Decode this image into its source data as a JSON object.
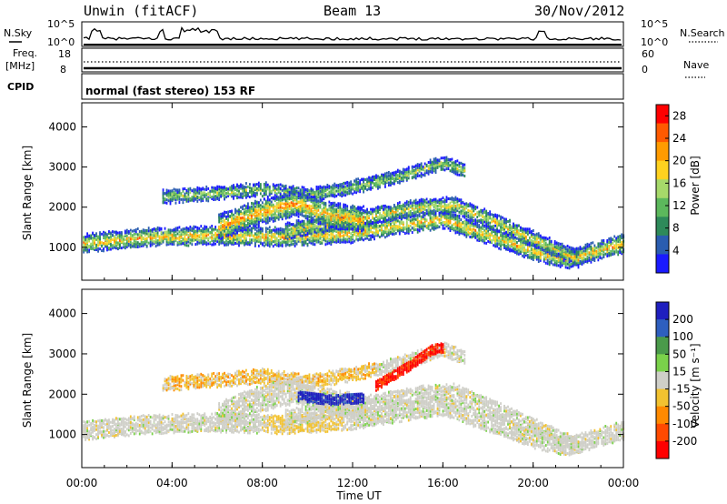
{
  "header": {
    "station": "Unwin (fitACF)",
    "beam": "Beam 13",
    "date": "30/Nov/2012"
  },
  "params": {
    "nsky_label": "N.Sky",
    "nsky_ticks": [
      "10^5",
      "10^0"
    ],
    "nsearch_label": "N.Search",
    "nsearch_ticks": [
      "10^5",
      "10^0"
    ],
    "freq_label": "Freq.",
    "freq_unit": "[MHz]",
    "freq_ticks": [
      "18",
      "8"
    ],
    "nave_label": "Nave",
    "nave_ticks": [
      "60",
      "0"
    ],
    "cpid_label": "CPID",
    "cpid_text": "normal (fast stereo) 153 RF"
  },
  "axes": {
    "x_ticks": [
      "00:00",
      "04:00",
      "08:00",
      "12:00",
      "16:00",
      "20:00",
      "00:00"
    ],
    "x_label": "Time UT",
    "y_ticks": [
      "1000",
      "2000",
      "3000",
      "4000"
    ],
    "y_label": "Slant Range [km]"
  },
  "chart_data": [
    {
      "type": "heatmap",
      "name": "power",
      "ylabel": "Slant Range [km]",
      "xlabel": "Time UT",
      "xlim": [
        0,
        24
      ],
      "ylim": [
        180,
        4600
      ],
      "colorbar": {
        "label": "Power [dB]",
        "ticks": [
          "28",
          "24",
          "20",
          "16",
          "12",
          "8",
          "4"
        ],
        "range": [
          0,
          30
        ],
        "colors": [
          "#1a1aff",
          "#2a5db0",
          "#2e8a5a",
          "#5cb85c",
          "#a6d96a",
          "#ffd21f",
          "#ff9b00",
          "#ff5a00",
          "#ff0000"
        ]
      },
      "bands": [
        {
          "t": [
            0.0,
            3.0,
            6.0,
            9.0,
            12.0,
            14.0,
            16.0,
            18.0,
            20.0,
            21.5,
            24.0
          ],
          "r": [
            1100,
            1250,
            1300,
            1250,
            1350,
            1550,
            1700,
            1300,
            900,
            700,
            1100
          ],
          "w": 220,
          "p": 20
        },
        {
          "t": [
            3.5,
            6.0,
            8.0,
            10.0,
            12.0,
            14.0,
            16.0,
            17.0
          ],
          "r": [
            2250,
            2350,
            2450,
            2300,
            2500,
            2750,
            3100,
            2900
          ],
          "w": 160,
          "p": 14
        },
        {
          "t": [
            9.0,
            11.0,
            13.0,
            15.0,
            16.5,
            18.0,
            20.0,
            22.0
          ],
          "r": [
            1400,
            1600,
            1800,
            2000,
            2050,
            1700,
            1200,
            700
          ],
          "w": 200,
          "p": 18
        },
        {
          "t": [
            6.0,
            8.0,
            9.5,
            11.0,
            12.5
          ],
          "r": [
            1500,
            1900,
            2100,
            1800,
            1700
          ],
          "w": 300,
          "p": 22
        }
      ]
    },
    {
      "type": "heatmap",
      "name": "velocity",
      "ylabel": "Slant Range [km]",
      "xlabel": "Time UT",
      "xlim": [
        0,
        24
      ],
      "ylim": [
        180,
        4600
      ],
      "colorbar": {
        "label": "Velocity [m s⁻¹]",
        "ticks": [
          "200",
          "100",
          "50",
          "15",
          "-15",
          "-50",
          "-100",
          "-200"
        ],
        "colors": [
          "#1f1fbf",
          "#2e5fbf",
          "#4a9a4a",
          "#7ad24a",
          "#cfcfc8",
          "#f2c230",
          "#ff8a00",
          "#ff4a00",
          "#ff0000"
        ]
      },
      "features": [
        {
          "t": [
            9.5,
            11.0,
            12.5
          ],
          "r": [
            1950,
            1850,
            1900
          ],
          "w": 250,
          "v": 200
        },
        {
          "t": [
            13.0,
            14.5,
            15.5,
            16.0
          ],
          "r": [
            2200,
            2700,
            3100,
            3150
          ],
          "w": 180,
          "v": -200
        }
      ]
    }
  ]
}
